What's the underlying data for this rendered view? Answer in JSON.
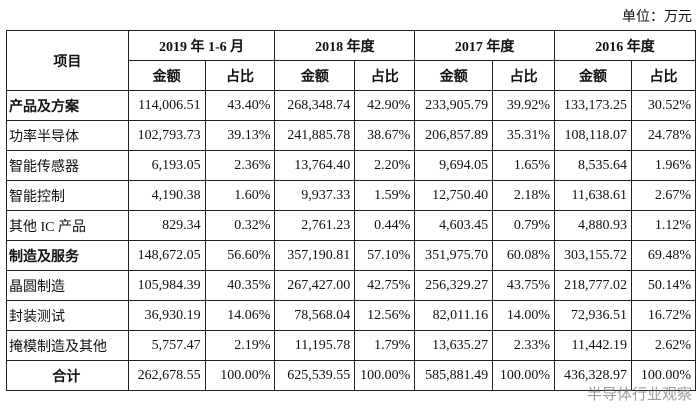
{
  "unit": "单位：万元",
  "table": {
    "header": [
      "项目",
      "2019 年 1-6 月",
      "2018 年度",
      "2017 年度",
      "2016 年度"
    ],
    "subheader": [
      "金额",
      "占比",
      "金额",
      "占比",
      "金额",
      "占比",
      "金额",
      "占比"
    ],
    "rows": [
      [
        "产品及方案",
        "114,006.51",
        "43.40%",
        "268,348.74",
        "42.90%",
        "233,905.79",
        "39.92%",
        "133,173.25",
        "30.52%"
      ],
      [
        "功率半导体",
        "102,793.73",
        "39.13%",
        "241,885.78",
        "38.67%",
        "206,857.89",
        "35.31%",
        "108,118.07",
        "24.78%"
      ],
      [
        "智能传感器",
        "6,193.05",
        "2.36%",
        "13,764.40",
        "2.20%",
        "9,694.05",
        "1.65%",
        "8,535.64",
        "1.96%"
      ],
      [
        "智能控制",
        "4,190.38",
        "1.60%",
        "9,937.33",
        "1.59%",
        "12,750.40",
        "2.18%",
        "11,638.61",
        "2.67%"
      ],
      [
        "其他 IC 产品",
        "829.34",
        "0.32%",
        "2,761.23",
        "0.44%",
        "4,603.45",
        "0.79%",
        "4,880.93",
        "1.12%"
      ],
      [
        "制造及服务",
        "148,672.05",
        "56.60%",
        "357,190.81",
        "57.10%",
        "351,975.70",
        "60.08%",
        "303,155.72",
        "69.48%"
      ],
      [
        "晶圆制造",
        "105,984.39",
        "40.35%",
        "267,427.00",
        "42.75%",
        "256,329.27",
        "43.75%",
        "218,777.02",
        "50.14%"
      ],
      [
        "封装测试",
        "36,930.19",
        "14.06%",
        "78,568.04",
        "12.56%",
        "82,011.16",
        "14.00%",
        "72,936.51",
        "16.72%"
      ],
      [
        "掩模制造及其他",
        "5,757.47",
        "2.19%",
        "11,195.78",
        "1.79%",
        "13,635.27",
        "2.33%",
        "11,442.19",
        "2.62%"
      ],
      [
        "合计",
        "262,678.55",
        "100.00%",
        "625,539.55",
        "100.00%",
        "585,881.49",
        "100.00%",
        "436,328.97",
        "100.00%"
      ]
    ]
  },
  "watermark": "半导体行业观察"
}
